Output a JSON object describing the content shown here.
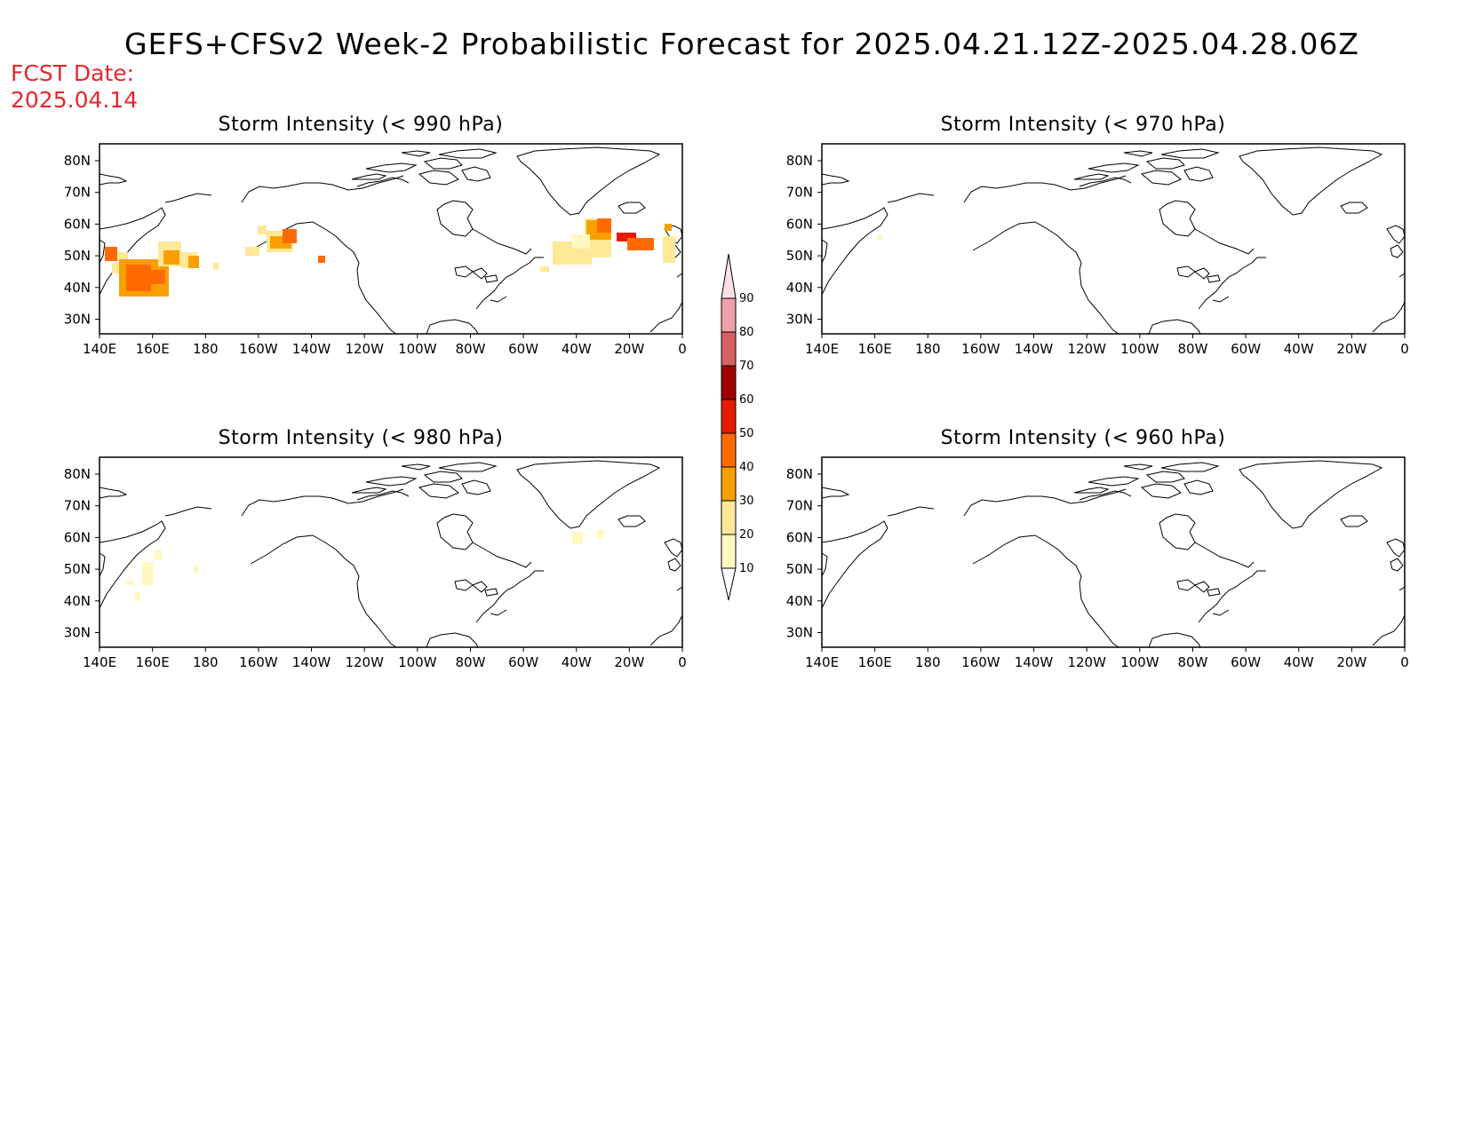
{
  "title": "GEFS+CFSv2 Week-2 Probabilistic Forecast for 2025.04.21.12Z-2025.04.28.06Z",
  "fcst_date": {
    "label": "FCST Date:",
    "value": "2025.04.14"
  },
  "x_ticks": [
    "140E",
    "160E",
    "180",
    "160W",
    "140W",
    "120W",
    "100W",
    "80W",
    "60W",
    "40W",
    "20W",
    "0"
  ],
  "y_ticks": [
    "80N",
    "70N",
    "60N",
    "50N",
    "40N",
    "30N"
  ],
  "colorbar": {
    "levels": [
      10,
      20,
      30,
      40,
      50,
      60,
      70,
      80,
      90
    ],
    "colors": [
      "#fff8c0",
      "#ffe898",
      "#f8a000",
      "#ff6a00",
      "#e61b00",
      "#a00000",
      "#d96060",
      "#f0a0a8",
      "#fde0e6"
    ]
  },
  "panels": [
    {
      "title": "Storm Intensity (< 990 hPa)"
    },
    {
      "title": "Storm Intensity (< 970 hPa)"
    },
    {
      "title": "Storm Intensity (< 980 hPa)"
    },
    {
      "title": "Storm Intensity (< 960 hPa)"
    }
  ]
}
